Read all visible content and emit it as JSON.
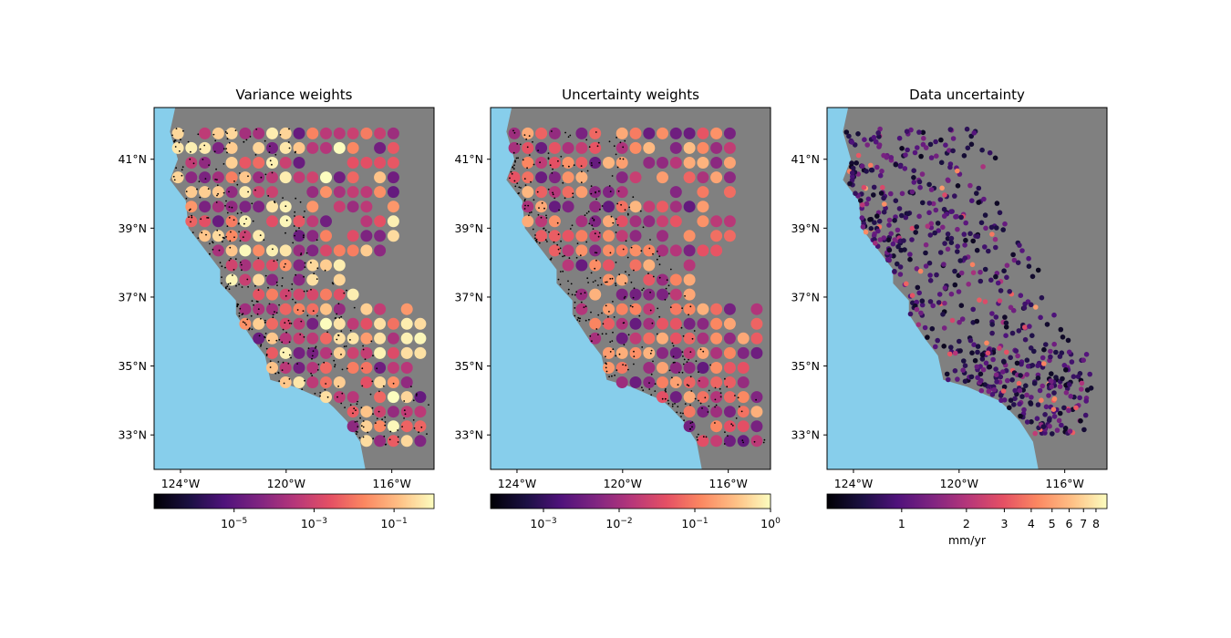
{
  "figure": {
    "panels": [
      {
        "id": "variance",
        "title": "Variance weights",
        "colorbar": {
          "scale": "log",
          "range": [
            1e-07,
            1
          ],
          "ticks": [
            {
              "value": 1e-05,
              "base": "10",
              "exp": "−5"
            },
            {
              "value": 0.001,
              "base": "10",
              "exp": "−3"
            },
            {
              "value": 0.1,
              "base": "10",
              "exp": "−1"
            }
          ],
          "label": ""
        },
        "marker": "grid",
        "seed": 11
      },
      {
        "id": "uncertainty",
        "title": "Uncertainty weights",
        "colorbar": {
          "scale": "log",
          "range": [
            0.0002,
            1
          ],
          "ticks": [
            {
              "value": 0.001,
              "base": "10",
              "exp": "−3"
            },
            {
              "value": 0.01,
              "base": "10",
              "exp": "−2"
            },
            {
              "value": 0.1,
              "base": "10",
              "exp": "−1"
            },
            {
              "value": 1,
              "base": "10",
              "exp": "0"
            }
          ],
          "label": ""
        },
        "marker": "grid",
        "seed": 23
      },
      {
        "id": "data-uncertainty",
        "title": "Data uncertainty",
        "colorbar": {
          "scale": "log",
          "range": [
            0.45,
            9
          ],
          "ticks": [
            {
              "value": 1,
              "text": "1"
            },
            {
              "value": 2,
              "text": "2"
            },
            {
              "value": 3,
              "text": "3"
            },
            {
              "value": 4,
              "text": "4"
            },
            {
              "value": 5,
              "text": "5"
            },
            {
              "value": 6,
              "text": "6"
            },
            {
              "value": 7,
              "text": "7"
            },
            {
              "value": 8,
              "text": "8"
            }
          ],
          "label": "mm/yr"
        },
        "marker": "stations",
        "seed": 37
      }
    ],
    "map": {
      "lon_range": [
        -125,
        -114.4
      ],
      "lat_range": [
        32,
        42.5
      ],
      "lon_ticks": [
        {
          "value": -124,
          "text": "124°W"
        },
        {
          "value": -120,
          "text": "120°W"
        },
        {
          "value": -116,
          "text": "116°W"
        }
      ],
      "lat_ticks": [
        {
          "value": 33,
          "text": "33°N"
        },
        {
          "value": 35,
          "text": "35°N"
        },
        {
          "value": 37,
          "text": "37°N"
        },
        {
          "value": 39,
          "text": "39°N"
        },
        {
          "value": 41,
          "text": "41°N"
        }
      ],
      "ocean_color": "#87ceeb",
      "land_color": "#808080",
      "colormap": "magma"
    }
  }
}
